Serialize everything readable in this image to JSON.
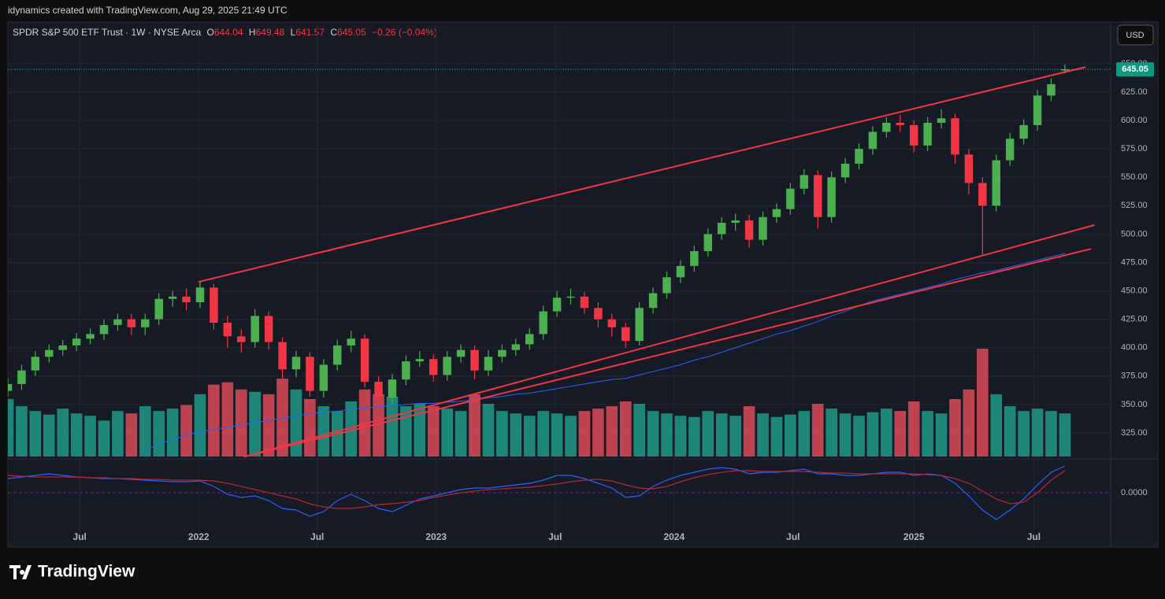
{
  "header": {
    "attribution": "idynamics created with TradingView.com, Aug 29, 2025 21:49 UTC",
    "symbol": "SPDR S&P 500 ETF Trust · 1W · NYSE Arca",
    "ohlc_labels": [
      "O",
      "H",
      "L",
      "C"
    ],
    "change": "−0.26 (−0.04%)",
    "currency": "USD"
  },
  "footer": {
    "brand": "TradingView"
  },
  "chart_data": {
    "type": "candlestick",
    "xlim": [
      0,
      241
    ],
    "ylim": [
      304.2,
      685.3
    ],
    "xticks": [
      {
        "value": 15.7,
        "label": "Jul"
      },
      {
        "value": 41.7,
        "label": "2022"
      },
      {
        "value": 67.6,
        "label": "Jul"
      },
      {
        "value": 93.6,
        "label": "2023"
      },
      {
        "value": 119.6,
        "label": "Jul"
      },
      {
        "value": 145.6,
        "label": "2024"
      },
      {
        "value": 171.6,
        "label": "Jul"
      },
      {
        "value": 198,
        "label": "2025"
      },
      {
        "value": 224.2,
        "label": "Jul"
      }
    ],
    "yticks": [
      {
        "value": 325,
        "label": "325.00"
      },
      {
        "value": 350,
        "label": "350.00"
      },
      {
        "value": 375,
        "label": "375.00"
      },
      {
        "value": 400,
        "label": "400.00"
      },
      {
        "value": 425,
        "label": "425.00"
      },
      {
        "value": 450,
        "label": "450.00"
      },
      {
        "value": 475,
        "label": "475.00"
      },
      {
        "value": 500,
        "label": "500.00"
      },
      {
        "value": 525,
        "label": "525.00"
      },
      {
        "value": 550,
        "label": "550.00"
      },
      {
        "value": 575,
        "label": "575.00"
      },
      {
        "value": 600,
        "label": "600.00"
      },
      {
        "value": 625,
        "label": "625.00"
      },
      {
        "value": 650,
        "label": "650.00"
      }
    ],
    "grid": true,
    "up_color": "#4caf50",
    "down_color": "#f23645",
    "volume_up_color": "#22ab94",
    "volume_down_color": "#f7525f",
    "x": [
      0,
      3,
      6,
      9,
      12,
      15,
      18,
      21,
      24,
      27,
      30,
      33,
      36,
      39,
      42,
      45,
      48,
      51,
      54,
      57,
      60,
      63,
      66,
      69,
      72,
      75,
      78,
      81,
      84,
      87,
      90,
      93,
      96,
      99,
      102,
      105,
      108,
      111,
      114,
      117,
      120,
      123,
      126,
      129,
      132,
      135,
      138,
      141,
      144,
      147,
      150,
      153,
      156,
      159,
      162,
      165,
      168,
      171,
      174,
      177,
      180,
      183,
      186,
      189,
      192,
      195,
      198,
      201,
      204,
      207,
      210,
      213,
      216,
      219,
      222,
      225,
      228,
      231
    ],
    "open": [
      362,
      368,
      380,
      392,
      398,
      402,
      408,
      412,
      420,
      425,
      418,
      425,
      443,
      445,
      440,
      453,
      422,
      410,
      405,
      428,
      405,
      381,
      392,
      362,
      385,
      402,
      408,
      370,
      356,
      372,
      388,
      390,
      376,
      392,
      398,
      380,
      392,
      398,
      403,
      412,
      432,
      444,
      445,
      435,
      425,
      418,
      406,
      435,
      448,
      462,
      472,
      485,
      500,
      510,
      512,
      495,
      515,
      522,
      540,
      552,
      515,
      550,
      562,
      575,
      590,
      598,
      596,
      578,
      598,
      602,
      570,
      545,
      525,
      565,
      584,
      596,
      622,
      644.04
    ],
    "high": [
      373,
      385,
      397,
      403,
      407,
      413,
      417,
      425,
      430,
      430,
      430,
      448,
      450,
      452,
      458,
      456,
      428,
      416,
      434,
      432,
      409,
      397,
      396,
      390,
      407,
      415,
      412,
      375,
      377,
      393,
      397,
      394,
      397,
      403,
      402,
      398,
      403,
      408,
      417,
      437,
      450,
      452,
      449,
      440,
      430,
      422,
      440,
      453,
      467,
      477,
      490,
      505,
      515,
      518,
      517,
      520,
      527,
      545,
      557,
      556,
      555,
      567,
      580,
      595,
      603,
      605,
      600,
      603,
      610,
      606,
      575,
      550,
      570,
      589,
      601,
      627,
      637,
      649.48
    ],
    "low": [
      357,
      363,
      375,
      387,
      393,
      397,
      403,
      407,
      415,
      411,
      411,
      420,
      436,
      433,
      435,
      416,
      400,
      396,
      400,
      398,
      372,
      374,
      357,
      356,
      380,
      396,
      365,
      349,
      350,
      367,
      383,
      370,
      371,
      387,
      372,
      375,
      387,
      393,
      398,
      407,
      427,
      438,
      430,
      418,
      410,
      400,
      402,
      430,
      443,
      457,
      467,
      480,
      495,
      503,
      488,
      490,
      510,
      517,
      535,
      505,
      510,
      545,
      557,
      570,
      585,
      590,
      572,
      573,
      593,
      562,
      535,
      481,
      520,
      560,
      579,
      591,
      617,
      641.57
    ],
    "close": [
      368,
      380,
      392,
      398,
      402,
      408,
      412,
      420,
      425,
      418,
      425,
      443,
      445,
      440,
      453,
      422,
      410,
      405,
      428,
      405,
      381,
      392,
      362,
      385,
      402,
      408,
      370,
      356,
      372,
      388,
      390,
      376,
      392,
      398,
      380,
      392,
      398,
      403,
      412,
      432,
      444,
      445,
      435,
      425,
      418,
      406,
      435,
      448,
      462,
      472,
      485,
      500,
      510,
      512,
      495,
      515,
      522,
      540,
      552,
      515,
      550,
      562,
      575,
      590,
      598,
      596,
      578,
      598,
      602,
      570,
      545,
      525,
      565,
      584,
      596,
      622,
      632,
      645.05
    ],
    "volume": [
      480,
      420,
      380,
      350,
      400,
      360,
      340,
      300,
      380,
      360,
      420,
      380,
      400,
      430,
      520,
      600,
      620,
      560,
      540,
      520,
      650,
      560,
      480,
      420,
      380,
      460,
      560,
      520,
      500,
      420,
      440,
      420,
      400,
      380,
      520,
      440,
      380,
      360,
      340,
      380,
      360,
      340,
      380,
      400,
      420,
      460,
      440,
      380,
      360,
      340,
      330,
      380,
      360,
      340,
      420,
      360,
      330,
      350,
      380,
      440,
      400,
      360,
      340,
      370,
      400,
      380,
      460,
      380,
      360,
      480,
      560,
      900,
      520,
      420,
      380,
      400,
      380,
      360
    ],
    "ma_color": "#2962ff",
    "ma": [
      null,
      null,
      null,
      null,
      null,
      null,
      null,
      null,
      null,
      null,
      310,
      315,
      319,
      323,
      326,
      328,
      330,
      332,
      334,
      336,
      338,
      340,
      342,
      343,
      344,
      346,
      347,
      348,
      349,
      350,
      351,
      351,
      352,
      353,
      354,
      356,
      357,
      359,
      360,
      362,
      364,
      366,
      368,
      370,
      372,
      373,
      376,
      379,
      382,
      385,
      389,
      392,
      396,
      400,
      404,
      408,
      412,
      415,
      419,
      423,
      428,
      432,
      437,
      441,
      444,
      447,
      450,
      453,
      456,
      460,
      463,
      466,
      468,
      471,
      474,
      477,
      480,
      483
    ],
    "trendline_color": "#f23645",
    "trendlines": [
      {
        "x": [
          41.7,
          235.5
        ],
        "y": [
          458,
          647
        ]
      },
      {
        "x": [
          51.6,
          237.5
        ],
        "y": [
          304,
          508
        ]
      },
      {
        "x": [
          51.6,
          236.7
        ],
        "y": [
          304,
          487
        ]
      }
    ],
    "indicator": {
      "ylim": [
        -67,
        41
      ],
      "yticks": [
        {
          "value": 0,
          "label": "0.0000"
        }
      ],
      "series": [
        {
          "color": "#2962ff",
          "values": [
            18,
            20,
            22,
            24,
            22,
            20,
            19,
            18,
            18,
            17,
            16,
            15,
            14,
            14,
            15,
            8,
            -2,
            -6,
            -4,
            -10,
            -20,
            -22,
            -30,
            -24,
            -10,
            -2,
            -10,
            -20,
            -24,
            -16,
            -8,
            -4,
            0,
            4,
            6,
            6,
            8,
            10,
            12,
            16,
            22,
            22,
            18,
            12,
            6,
            -6,
            -4,
            8,
            16,
            22,
            26,
            30,
            32,
            30,
            24,
            26,
            26,
            28,
            30,
            24,
            24,
            22,
            22,
            24,
            26,
            26,
            22,
            24,
            22,
            12,
            -4,
            -22,
            -34,
            -22,
            -8,
            10,
            26,
            34
          ]
        },
        {
          "color": "#b22833",
          "values": [
            22,
            21,
            20,
            20,
            20,
            20,
            19,
            19,
            18,
            18,
            17,
            17,
            16,
            16,
            16,
            15,
            12,
            8,
            4,
            0,
            -4,
            -8,
            -14,
            -18,
            -20,
            -20,
            -18,
            -15,
            -14,
            -12,
            -10,
            -6,
            -3,
            0,
            2,
            4,
            5,
            6,
            7,
            9,
            11,
            14,
            16,
            17,
            15,
            10,
            6,
            5,
            8,
            14,
            19,
            23,
            26,
            28,
            28,
            27,
            27,
            27,
            27,
            26,
            25,
            25,
            24,
            24,
            24,
            24,
            24,
            23,
            22,
            18,
            12,
            2,
            -8,
            -14,
            -12,
            0,
            16,
            28
          ]
        }
      ]
    }
  }
}
